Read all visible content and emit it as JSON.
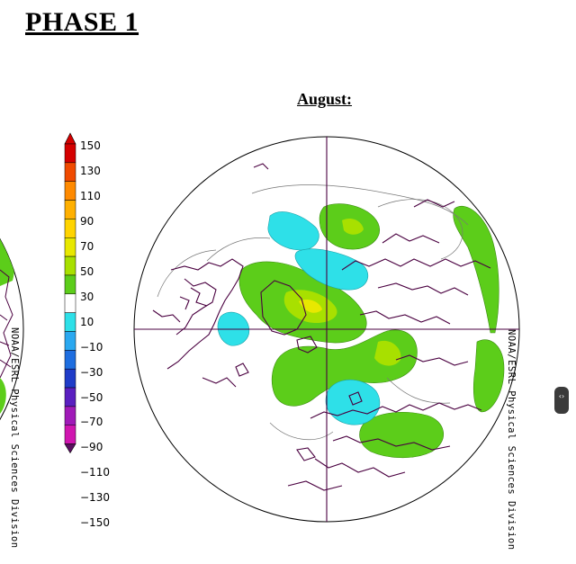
{
  "header": {
    "title": "PHASE 1"
  },
  "map": {
    "month_title": "August:"
  },
  "legend": {
    "labels": [
      "150",
      "130",
      "110",
      "90",
      "70",
      "50",
      "30",
      "10",
      "−10",
      "−30",
      "−50",
      "−70",
      "−90",
      "−110",
      "−130",
      "−150"
    ],
    "colors": [
      "#d40000",
      "#f04a00",
      "#ff8a00",
      "#ffb000",
      "#ffd400",
      "#e8e800",
      "#a8e000",
      "#5ccd1a",
      "#ffffff",
      "#2ee0e8",
      "#2aa8f0",
      "#1e6ee0",
      "#1f3cc8",
      "#5a1fc0",
      "#a01ab8",
      "#d016b0",
      "#5a1060"
    ]
  },
  "credits": {
    "left": "NOAA/ESRL Physical Sciences Division",
    "right": "NOAA/ESRL Physical Sciences Division"
  },
  "scroll_handle": {
    "glyph": "‹›"
  }
}
